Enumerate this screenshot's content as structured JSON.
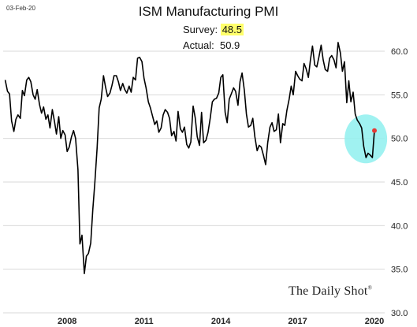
{
  "header": {
    "date_stamp": "03-Feb-20",
    "title": "ISM Manufacturing PMI",
    "survey_label": "Survey:",
    "survey_value": "48.5",
    "actual_label": "Actual:",
    "actual_value": "50.9"
  },
  "watermark": "The Daily Shot",
  "colors": {
    "line": "#000000",
    "grid": "#d9d9d9",
    "highlight_circle": "#8ff0ee",
    "last_point": "#e53935",
    "survey_highlight": "#ffff6b"
  },
  "chart_data": {
    "type": "line",
    "title": "ISM Manufacturing PMI",
    "xlabel": "",
    "ylabel": "",
    "ylim": [
      30,
      60
    ],
    "xlim": [
      2005.5,
      2020.4
    ],
    "yticks": [
      30.0,
      35.0,
      40.0,
      45.0,
      50.0,
      55.0,
      60.0
    ],
    "ytick_labels": [
      "30.0",
      "35.0",
      "40.0",
      "45.0",
      "50.0",
      "55.0",
      "60.0"
    ],
    "xticks": [
      2008,
      2011,
      2014,
      2017,
      2020
    ],
    "xtick_labels": [
      "2008",
      "2011",
      "2014",
      "2017",
      "2020"
    ],
    "y_axis_position": "right",
    "grid": "horizontal",
    "series": [
      {
        "values": [
          [
            2005.58,
            56.7
          ],
          [
            2005.67,
            55.4
          ],
          [
            2005.75,
            55.1
          ],
          [
            2005.83,
            52.0
          ],
          [
            2005.92,
            50.8
          ],
          [
            2006.0,
            52.2
          ],
          [
            2006.08,
            52.7
          ],
          [
            2006.17,
            52.3
          ],
          [
            2006.25,
            55.5
          ],
          [
            2006.33,
            54.9
          ],
          [
            2006.42,
            56.7
          ],
          [
            2006.5,
            57.0
          ],
          [
            2006.58,
            56.5
          ],
          [
            2006.67,
            55.0
          ],
          [
            2006.75,
            54.5
          ],
          [
            2006.83,
            55.6
          ],
          [
            2006.92,
            53.9
          ],
          [
            2007.0,
            52.9
          ],
          [
            2007.08,
            53.6
          ],
          [
            2007.17,
            52.2
          ],
          [
            2007.25,
            52.7
          ],
          [
            2007.33,
            51.2
          ],
          [
            2007.42,
            53.3
          ],
          [
            2007.5,
            52.0
          ],
          [
            2007.58,
            50.5
          ],
          [
            2007.67,
            52.5
          ],
          [
            2007.75,
            50.0
          ],
          [
            2007.83,
            50.9
          ],
          [
            2007.92,
            50.4
          ],
          [
            2008.0,
            48.5
          ],
          [
            2008.08,
            49.0
          ],
          [
            2008.17,
            50.2
          ],
          [
            2008.25,
            50.9
          ],
          [
            2008.33,
            50.0
          ],
          [
            2008.42,
            46.4
          ],
          [
            2008.5,
            37.9
          ],
          [
            2008.58,
            38.9
          ],
          [
            2008.67,
            34.5
          ],
          [
            2008.75,
            36.5
          ],
          [
            2008.83,
            36.8
          ],
          [
            2008.92,
            38.0
          ],
          [
            2009.0,
            41.8
          ],
          [
            2009.08,
            44.9
          ],
          [
            2009.17,
            48.9
          ],
          [
            2009.25,
            53.5
          ],
          [
            2009.33,
            54.5
          ],
          [
            2009.42,
            57.2
          ],
          [
            2009.5,
            55.9
          ],
          [
            2009.58,
            54.8
          ],
          [
            2009.67,
            55.2
          ],
          [
            2009.75,
            56.1
          ],
          [
            2009.83,
            57.2
          ],
          [
            2009.92,
            57.2
          ],
          [
            2010.0,
            56.5
          ],
          [
            2010.08,
            55.5
          ],
          [
            2010.17,
            56.3
          ],
          [
            2010.25,
            55.6
          ],
          [
            2010.33,
            55.2
          ],
          [
            2010.42,
            56.0
          ],
          [
            2010.5,
            55.3
          ],
          [
            2010.58,
            57.0
          ],
          [
            2010.67,
            56.7
          ],
          [
            2010.75,
            59.2
          ],
          [
            2010.83,
            59.3
          ],
          [
            2010.92,
            58.8
          ],
          [
            2011.0,
            56.9
          ],
          [
            2011.08,
            55.8
          ],
          [
            2011.17,
            54.2
          ],
          [
            2011.25,
            53.5
          ],
          [
            2011.33,
            52.6
          ],
          [
            2011.42,
            51.6
          ],
          [
            2011.5,
            52.0
          ],
          [
            2011.58,
            50.7
          ],
          [
            2011.67,
            51.2
          ],
          [
            2011.75,
            52.7
          ],
          [
            2011.83,
            53.3
          ],
          [
            2011.92,
            53.0
          ],
          [
            2012.0,
            52.3
          ],
          [
            2012.08,
            50.3
          ],
          [
            2012.17,
            50.8
          ],
          [
            2012.25,
            49.7
          ],
          [
            2012.33,
            53.1
          ],
          [
            2012.42,
            51.1
          ],
          [
            2012.5,
            50.7
          ],
          [
            2012.58,
            51.3
          ],
          [
            2012.67,
            49.3
          ],
          [
            2012.75,
            48.9
          ],
          [
            2012.83,
            49.6
          ],
          [
            2012.92,
            53.7
          ],
          [
            2013.0,
            52.4
          ],
          [
            2013.08,
            50.2
          ],
          [
            2013.17,
            49.2
          ],
          [
            2013.25,
            53.0
          ],
          [
            2013.33,
            49.5
          ],
          [
            2013.42,
            49.8
          ],
          [
            2013.5,
            50.7
          ],
          [
            2013.58,
            52.2
          ],
          [
            2013.67,
            54.2
          ],
          [
            2013.75,
            54.5
          ],
          [
            2013.83,
            54.6
          ],
          [
            2013.92,
            55.2
          ],
          [
            2014.0,
            57.0
          ],
          [
            2014.08,
            57.3
          ],
          [
            2014.17,
            53.0
          ],
          [
            2014.25,
            51.8
          ],
          [
            2014.33,
            54.5
          ],
          [
            2014.42,
            55.2
          ],
          [
            2014.5,
            55.8
          ],
          [
            2014.58,
            55.4
          ],
          [
            2014.67,
            53.8
          ],
          [
            2014.75,
            56.5
          ],
          [
            2014.83,
            57.5
          ],
          [
            2014.92,
            55.5
          ],
          [
            2015.0,
            52.8
          ],
          [
            2015.08,
            51.3
          ],
          [
            2015.17,
            51.5
          ],
          [
            2015.25,
            52.3
          ],
          [
            2015.33,
            50.2
          ],
          [
            2015.42,
            48.6
          ],
          [
            2015.5,
            49.2
          ],
          [
            2015.58,
            49.0
          ],
          [
            2015.67,
            48.0
          ],
          [
            2015.75,
            47.0
          ],
          [
            2015.83,
            49.5
          ],
          [
            2015.92,
            51.3
          ],
          [
            2016.0,
            51.8
          ],
          [
            2016.08,
            50.8
          ],
          [
            2016.17,
            51.0
          ],
          [
            2016.25,
            52.8
          ],
          [
            2016.33,
            49.5
          ],
          [
            2016.42,
            51.7
          ],
          [
            2016.5,
            51.5
          ],
          [
            2016.58,
            53.2
          ],
          [
            2016.67,
            54.5
          ],
          [
            2016.75,
            56.0
          ],
          [
            2016.83,
            55.0
          ],
          [
            2016.92,
            57.7
          ],
          [
            2017.0,
            57.2
          ],
          [
            2017.08,
            56.8
          ],
          [
            2017.17,
            56.6
          ],
          [
            2017.25,
            58.6
          ],
          [
            2017.33,
            58.0
          ],
          [
            2017.42,
            57.0
          ],
          [
            2017.5,
            59.0
          ],
          [
            2017.58,
            60.6
          ],
          [
            2017.67,
            58.4
          ],
          [
            2017.75,
            58.2
          ],
          [
            2017.83,
            59.3
          ],
          [
            2017.92,
            60.7
          ],
          [
            2018.0,
            59.0
          ],
          [
            2018.08,
            57.9
          ],
          [
            2018.17,
            57.7
          ],
          [
            2018.25,
            59.2
          ],
          [
            2018.33,
            59.5
          ],
          [
            2018.42,
            59.0
          ],
          [
            2018.5,
            58.1
          ],
          [
            2018.58,
            61.0
          ],
          [
            2018.67,
            59.8
          ],
          [
            2018.75,
            57.7
          ],
          [
            2018.83,
            58.8
          ],
          [
            2018.92,
            54.1
          ],
          [
            2019.0,
            56.6
          ],
          [
            2019.08,
            54.2
          ],
          [
            2019.17,
            55.3
          ],
          [
            2019.25,
            52.8
          ],
          [
            2019.33,
            52.1
          ],
          [
            2019.42,
            51.7
          ],
          [
            2019.5,
            51.2
          ],
          [
            2019.58,
            49.1
          ],
          [
            2019.67,
            47.8
          ],
          [
            2019.75,
            48.3
          ],
          [
            2019.83,
            48.1
          ],
          [
            2019.92,
            47.8
          ],
          [
            2020.0,
            50.9
          ]
        ]
      }
    ],
    "highlight": {
      "type": "ellipse",
      "around": "2019-2020 values",
      "color": "#8ff0ee"
    },
    "last_point_marker": {
      "x": 2020.0,
      "y": 50.9,
      "color": "#e53935"
    }
  }
}
